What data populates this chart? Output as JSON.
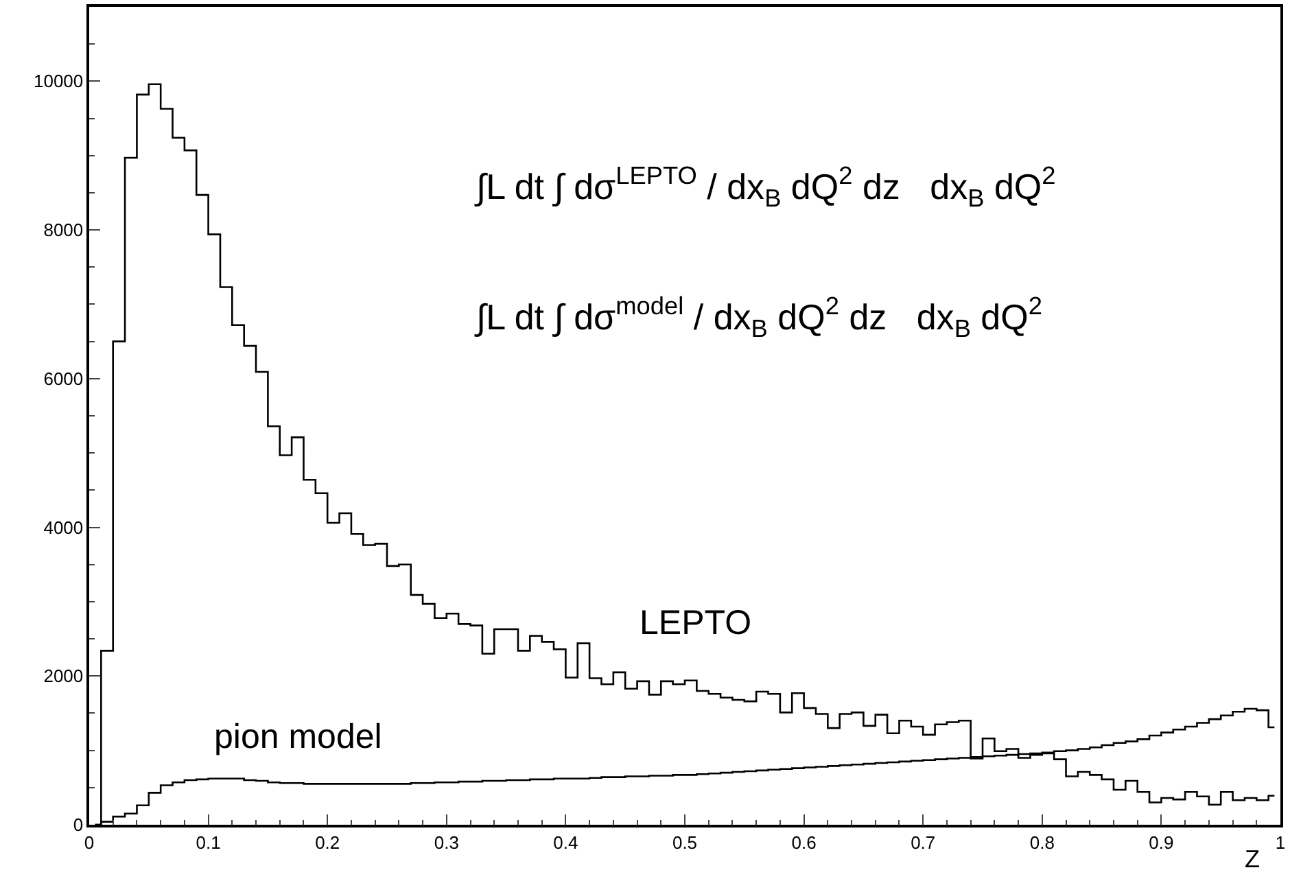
{
  "chart_data": {
    "type": "step",
    "x": [
      0.005,
      0.015,
      0.025,
      0.035,
      0.045,
      0.055,
      0.065,
      0.075,
      0.085,
      0.095,
      0.105,
      0.115,
      0.125,
      0.135,
      0.145,
      0.155,
      0.165,
      0.175,
      0.185,
      0.195,
      0.205,
      0.215,
      0.225,
      0.235,
      0.245,
      0.255,
      0.265,
      0.275,
      0.285,
      0.295,
      0.305,
      0.315,
      0.325,
      0.335,
      0.345,
      0.355,
      0.365,
      0.375,
      0.385,
      0.395,
      0.405,
      0.415,
      0.425,
      0.435,
      0.445,
      0.455,
      0.465,
      0.475,
      0.485,
      0.495,
      0.505,
      0.515,
      0.525,
      0.535,
      0.545,
      0.555,
      0.565,
      0.575,
      0.585,
      0.595,
      0.605,
      0.615,
      0.625,
      0.635,
      0.645,
      0.655,
      0.665,
      0.675,
      0.685,
      0.695,
      0.705,
      0.715,
      0.725,
      0.735,
      0.745,
      0.755,
      0.765,
      0.775,
      0.785,
      0.795,
      0.805,
      0.815,
      0.825,
      0.835,
      0.845,
      0.855,
      0.865,
      0.875,
      0.885,
      0.895,
      0.905,
      0.915,
      0.925,
      0.935,
      0.945,
      0.955,
      0.965,
      0.975,
      0.985,
      0.995
    ],
    "series": [
      {
        "name": "LEPTO",
        "color": "#000000",
        "values": [
          0,
          2340,
          6500,
          8970,
          9820,
          9960,
          9630,
          9240,
          9070,
          8470,
          7940,
          7230,
          6720,
          6440,
          6090,
          5360,
          4970,
          5210,
          4640,
          4460,
          4060,
          4190,
          3910,
          3760,
          3780,
          3480,
          3500,
          3090,
          2970,
          2780,
          2840,
          2700,
          2680,
          2300,
          2630,
          2630,
          2340,
          2540,
          2460,
          2360,
          1980,
          2440,
          1970,
          1890,
          2050,
          1830,
          1930,
          1750,
          1930,
          1890,
          1940,
          1800,
          1760,
          1710,
          1680,
          1660,
          1790,
          1760,
          1510,
          1770,
          1570,
          1490,
          1300,
          1490,
          1510,
          1330,
          1480,
          1230,
          1400,
          1320,
          1210,
          1350,
          1380,
          1400,
          890,
          1160,
          990,
          1020,
          900,
          940,
          960,
          880,
          650,
          710,
          670,
          610,
          470,
          590,
          440,
          300,
          360,
          340,
          440,
          380,
          270,
          440,
          330,
          360,
          330,
          390
        ]
      },
      {
        "name": "pion model",
        "color": "#000000",
        "values": [
          0,
          40,
          110,
          150,
          260,
          430,
          530,
          570,
          600,
          610,
          620,
          620,
          620,
          600,
          590,
          570,
          560,
          560,
          550,
          550,
          550,
          550,
          550,
          550,
          550,
          550,
          550,
          560,
          560,
          570,
          570,
          580,
          580,
          590,
          590,
          600,
          600,
          610,
          610,
          620,
          620,
          620,
          630,
          640,
          640,
          650,
          650,
          660,
          660,
          670,
          670,
          680,
          690,
          700,
          710,
          720,
          730,
          740,
          750,
          760,
          770,
          780,
          790,
          800,
          810,
          820,
          830,
          840,
          850,
          860,
          870,
          880,
          890,
          900,
          910,
          920,
          930,
          940,
          950,
          960,
          970,
          990,
          1000,
          1020,
          1040,
          1070,
          1100,
          1120,
          1150,
          1200,
          1240,
          1280,
          1320,
          1370,
          1420,
          1470,
          1520,
          1560,
          1540,
          1310
        ]
      }
    ],
    "xlabel": "Z",
    "xlim": [
      0,
      1
    ],
    "xticks": [
      0,
      0.1,
      0.2,
      0.3,
      0.4,
      0.5,
      0.6,
      0.7,
      0.8,
      0.9,
      1
    ],
    "ylim": [
      0,
      11000
    ],
    "yticks": [
      0,
      2000,
      4000,
      6000,
      8000,
      10000
    ],
    "annotations": [
      "∫L dt ∫ dσ$^{LEPTO}$ / dx$_{B}$ dQ$^{2}$ dz   dx$_{B}$ dQ$^{2}$",
      "∫L dt ∫ dσ$^{model}$ / dx$_{B}$ dQ$^{2}$ dz   dx$_{B}$ dQ$^{2}$"
    ],
    "legend": false
  }
}
